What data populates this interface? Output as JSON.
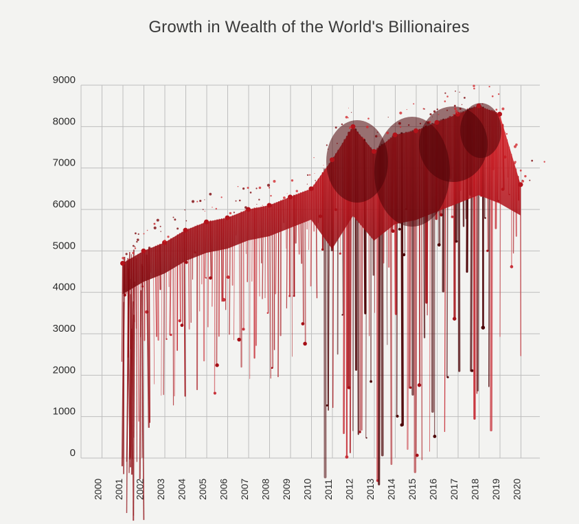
{
  "chart_data": {
    "type": "area",
    "title": "Growth in Wealth of the World's Billionaires",
    "xlabel": "",
    "ylabel": "",
    "categories": [
      "2000",
      "2001",
      "2002",
      "2003",
      "2004",
      "2005",
      "2006",
      "2007",
      "2008",
      "2009",
      "2010",
      "2011",
      "2012",
      "2013",
      "2014",
      "2015",
      "2016",
      "2017",
      "2018",
      "2019",
      "2020"
    ],
    "yticks": [
      0,
      1000,
      2000,
      3000,
      4000,
      5000,
      6000,
      7000,
      8000,
      9000
    ],
    "ylim": [
      0,
      9000
    ],
    "series": [
      {
        "values": [
          null,
          4700,
          5000,
          5200,
          5500,
          5700,
          5800,
          6000,
          6100,
          6300,
          6500,
          7200,
          8000,
          7400,
          7800,
          7900,
          8100,
          8300,
          8500,
          8300,
          6600
        ]
      }
    ],
    "grid": true,
    "colors": {
      "blood": "#c4131b",
      "dark_blood": "#5a0508",
      "grid": "#bdbdbd",
      "background": "#f3f3f1"
    }
  }
}
